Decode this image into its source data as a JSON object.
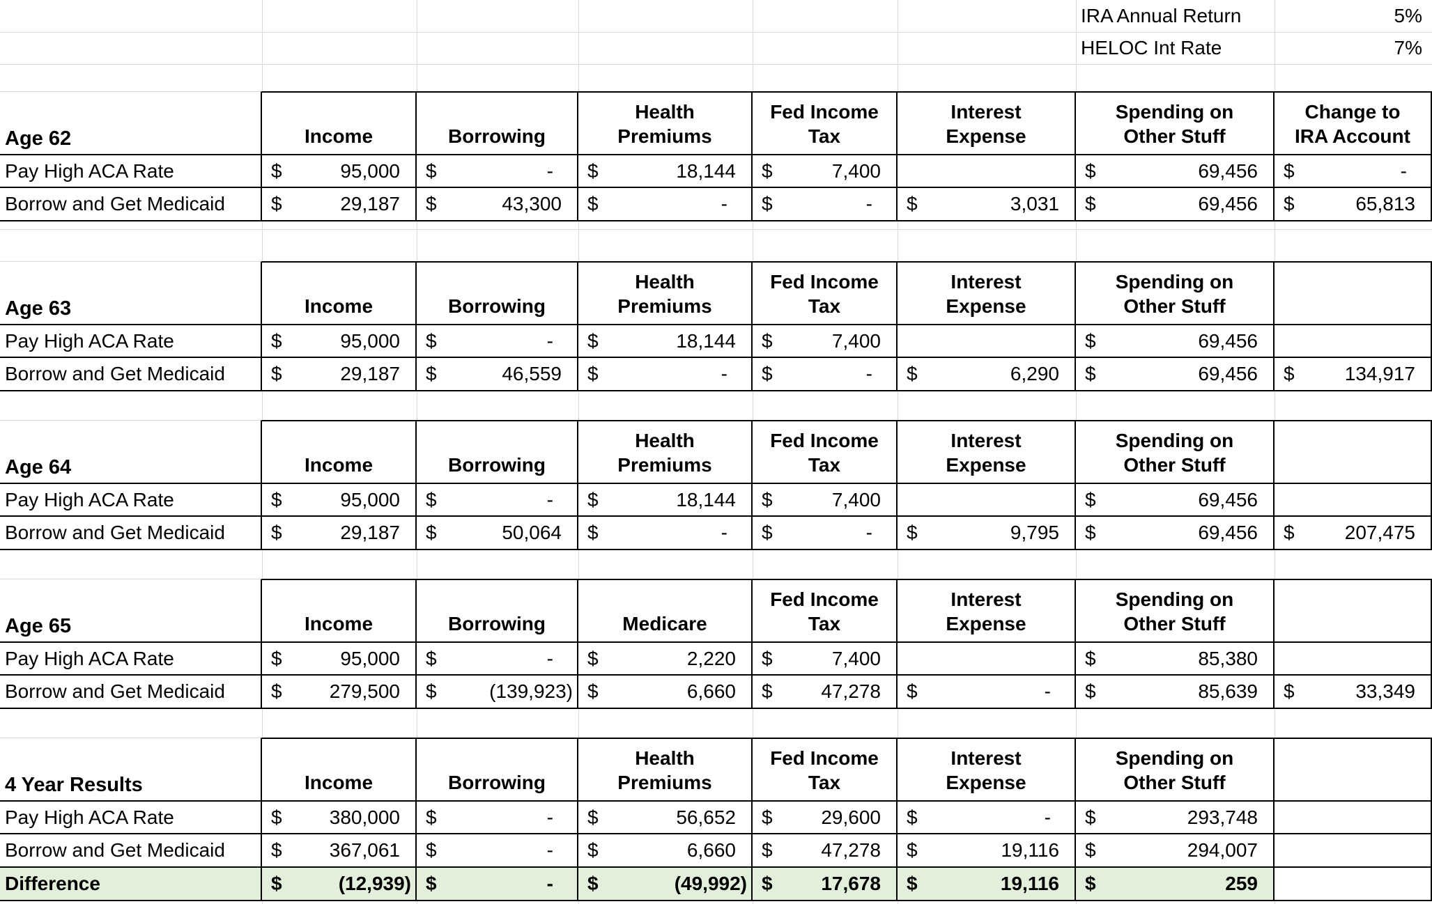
{
  "format": {
    "currency_symbol": "$"
  },
  "colors": {
    "difference_fill": "#e2efda",
    "table_border": "#000000",
    "gridline": "#d9d9d9"
  },
  "config": {
    "rows": [
      {
        "label": "IRA Annual Return",
        "value": "5%"
      },
      {
        "label": "HELOC Int Rate",
        "value": "7%"
      }
    ]
  },
  "sections": [
    {
      "title": "Age 62",
      "columns": [
        [
          "Income"
        ],
        [
          "Borrowing"
        ],
        [
          "Health",
          "Premiums"
        ],
        [
          "Fed Income",
          "Tax"
        ],
        [
          "Interest",
          "Expense"
        ],
        [
          "Spending on",
          "Other Stuff"
        ],
        [
          "Change to",
          "IRA Account"
        ]
      ],
      "rows": [
        {
          "label": "Pay High ACA Rate",
          "variant": "normal",
          "cells": [
            "95,000",
            "-",
            "18,144",
            "7,400",
            "",
            "69,456",
            "-"
          ]
        },
        {
          "label": "Borrow and Get Medicaid",
          "variant": "normal",
          "cells": [
            "29,187",
            "43,300",
            "-",
            "-",
            "3,031",
            "69,456",
            "65,813"
          ]
        }
      ]
    },
    {
      "title": "Age 63",
      "columns": [
        [
          "Income"
        ],
        [
          "Borrowing"
        ],
        [
          "Health",
          "Premiums"
        ],
        [
          "Fed Income",
          "Tax"
        ],
        [
          "Interest",
          "Expense"
        ],
        [
          "Spending on",
          "Other Stuff"
        ],
        []
      ],
      "rows": [
        {
          "label": "Pay High ACA Rate",
          "variant": "normal",
          "cells": [
            "95,000",
            "-",
            "18,144",
            "7,400",
            "",
            "69,456",
            ""
          ]
        },
        {
          "label": "Borrow and Get Medicaid",
          "variant": "normal",
          "cells": [
            "29,187",
            "46,559",
            "-",
            "-",
            "6,290",
            "69,456",
            "134,917"
          ]
        }
      ]
    },
    {
      "title": "Age 64",
      "columns": [
        [
          "Income"
        ],
        [
          "Borrowing"
        ],
        [
          "Health",
          "Premiums"
        ],
        [
          "Fed Income",
          "Tax"
        ],
        [
          "Interest",
          "Expense"
        ],
        [
          "Spending on",
          "Other Stuff"
        ],
        []
      ],
      "rows": [
        {
          "label": "Pay High ACA Rate",
          "variant": "normal",
          "cells": [
            "95,000",
            "-",
            "18,144",
            "7,400",
            "",
            "69,456",
            ""
          ]
        },
        {
          "label": "Borrow and Get Medicaid",
          "variant": "normal",
          "cells": [
            "29,187",
            "50,064",
            "-",
            "-",
            "9,795",
            "69,456",
            "207,475"
          ]
        }
      ]
    },
    {
      "title": "Age 65",
      "columns": [
        [
          "Income"
        ],
        [
          "Borrowing"
        ],
        [
          "Medicare"
        ],
        [
          "Fed Income",
          "Tax"
        ],
        [
          "Interest",
          "Expense"
        ],
        [
          "Spending on",
          "Other Stuff"
        ],
        []
      ],
      "rows": [
        {
          "label": "Pay High ACA Rate",
          "variant": "normal",
          "cells": [
            "95,000",
            "-",
            "2,220",
            "7,400",
            "",
            "85,380",
            ""
          ]
        },
        {
          "label": "Borrow and Get Medicaid",
          "variant": "normal",
          "cells": [
            "279,500",
            "(139,923)",
            "6,660",
            "47,278",
            "-",
            "85,639",
            "33,349"
          ]
        }
      ]
    },
    {
      "title": "4 Year Results",
      "columns": [
        [
          "Income"
        ],
        [
          "Borrowing"
        ],
        [
          "Health",
          "Premiums"
        ],
        [
          "Fed Income",
          "Tax"
        ],
        [
          "Interest",
          "Expense"
        ],
        [
          "Spending on",
          "Other Stuff"
        ],
        []
      ],
      "rows": [
        {
          "label": "Pay High ACA Rate",
          "variant": "normal",
          "cells": [
            "380,000",
            "-",
            "56,652",
            "29,600",
            "-",
            "293,748",
            ""
          ]
        },
        {
          "label": "Borrow and Get Medicaid",
          "variant": "normal",
          "cells": [
            "367,061",
            "-",
            "6,660",
            "47,278",
            "19,116",
            "294,007",
            ""
          ]
        },
        {
          "label": "Difference",
          "variant": "difference",
          "cells": [
            "(12,939)",
            "-",
            "(49,992)",
            "17,678",
            "19,116",
            "259",
            ""
          ]
        }
      ]
    }
  ]
}
